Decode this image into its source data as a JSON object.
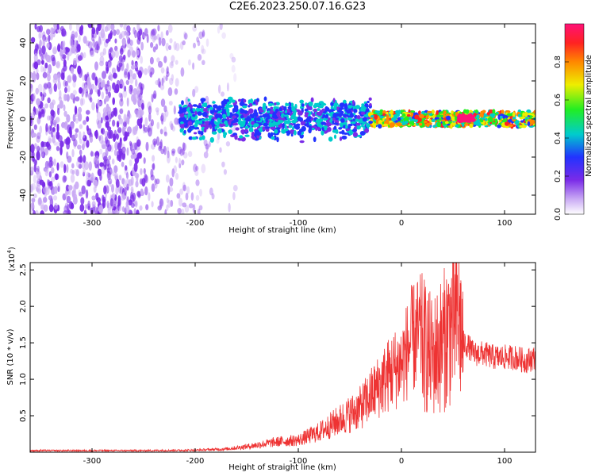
{
  "title": "C2E6.2023.250.07.16.G23",
  "colors": {
    "snr_line": "#ee3333",
    "spectro_scatter": "#7a2be8",
    "colormap": [
      "#ffffff",
      "#c9a9f4",
      "#7a2be8",
      "#2233ff",
      "#00cccc",
      "#22ee22",
      "#eeee00",
      "#ff8800",
      "#ff2222",
      "#ff1177"
    ]
  },
  "chart_data": [
    {
      "type": "heatmap",
      "title": "C2E6.2023.250.07.16.G23",
      "xlabel": "Height of straight line (km)",
      "ylabel": "Frequency (Hz)",
      "xlim": [
        -360,
        130
      ],
      "ylim": [
        -50,
        50
      ],
      "x_ticks": [
        -300,
        -200,
        -100,
        0,
        100
      ],
      "x_tick_labels": [
        "-300",
        "-200",
        "-100",
        "0",
        "100"
      ],
      "y_ticks": [
        40,
        20,
        0,
        -20,
        -40
      ],
      "y_tick_labels": [
        "40",
        "20",
        "0",
        "-20",
        "-40"
      ],
      "colorbar": {
        "label": "Normalized spectral amplitude",
        "range": [
          0,
          1
        ],
        "ticks": [
          0.0,
          0.2,
          0.4,
          0.6,
          0.8
        ],
        "tick_labels": [
          "0.0",
          "0.2",
          "0.4",
          "0.6",
          "0.8"
        ]
      },
      "regions": [
        {
          "x_range": [
            -360,
            -250
          ],
          "freq_range": [
            -50,
            50
          ],
          "amplitude": 0.15,
          "density": "high"
        },
        {
          "x_range": [
            -250,
            -160
          ],
          "freq_range": [
            -50,
            50
          ],
          "amplitude": 0.1,
          "density": "fading"
        },
        {
          "x_range": [
            -215,
            -30
          ],
          "freq_range": [
            -12,
            12
          ],
          "amplitude": 0.25,
          "density": "band"
        },
        {
          "x_range": [
            -30,
            130
          ],
          "freq_range": [
            -4,
            4
          ],
          "amplitude": 0.6,
          "density": "narrow band"
        },
        {
          "x_range": [
            55,
            70
          ],
          "freq_range": [
            -1,
            2
          ],
          "amplitude": 0.95,
          "density": "peak"
        }
      ]
    },
    {
      "type": "line",
      "xlabel": "Height of straight line (km)",
      "ylabel": "SNR (10 * v/v)",
      "multiplier_label": "(x10",
      "multiplier_exp": "4",
      "xlim": [
        -360,
        130
      ],
      "ylim": [
        0,
        2.6
      ],
      "x_ticks": [
        -300,
        -200,
        -100,
        0,
        100
      ],
      "x_tick_labels": [
        "-300",
        "-200",
        "-100",
        "0",
        "100"
      ],
      "y_ticks": [
        0.5,
        1.0,
        1.5,
        2.0,
        2.5
      ],
      "y_tick_labels": [
        "0.5",
        "1.0",
        "1.5",
        "2.0",
        "2.5"
      ],
      "series": [
        {
          "x": [
            -360,
            -300,
            -250,
            -200,
            -170,
            -150,
            -120,
            -100,
            -80,
            -60,
            -40,
            -20,
            -10,
            0,
            10,
            20,
            30,
            40,
            50,
            55,
            60,
            65,
            70,
            80,
            90,
            100,
            110,
            120,
            130
          ],
          "y": [
            0.02,
            0.02,
            0.02,
            0.025,
            0.04,
            0.07,
            0.13,
            0.15,
            0.25,
            0.4,
            0.55,
            0.85,
            1.0,
            1.1,
            1.4,
            1.5,
            1.3,
            1.5,
            1.8,
            1.9,
            1.5,
            1.45,
            1.35,
            1.35,
            1.3,
            1.3,
            1.3,
            1.25,
            1.3
          ]
        }
      ]
    }
  ]
}
